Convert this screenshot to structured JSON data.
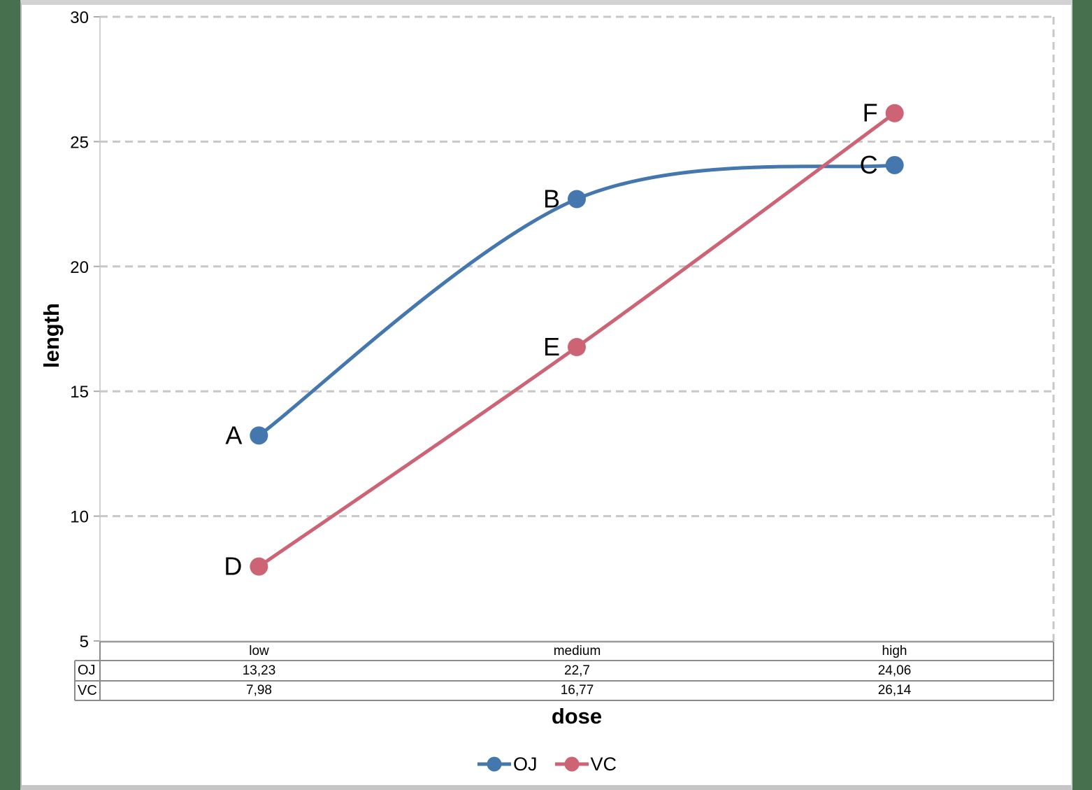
{
  "chart_data": {
    "type": "line",
    "categories": [
      "low",
      "medium",
      "high"
    ],
    "series": [
      {
        "name": "OJ",
        "color": "#4377ad",
        "values": [
          13.23,
          22.7,
          24.06
        ],
        "point_labels": [
          "A",
          "B",
          "C"
        ],
        "smooth": true
      },
      {
        "name": "VC",
        "color": "#cc6476",
        "values": [
          7.98,
          16.77,
          26.14
        ],
        "point_labels": [
          "D",
          "E",
          "F"
        ],
        "smooth": false
      }
    ],
    "xlabel": "dose",
    "ylabel": "length",
    "ylim": [
      5,
      30
    ],
    "yticks": [
      30,
      25,
      20,
      15,
      10,
      5
    ],
    "grid": "horizontal-dashed",
    "legend_position": "bottom",
    "decimal_separator": ","
  },
  "axis": {
    "ylabel": "length",
    "xlabel": "dose"
  },
  "table": {
    "column_headers": [
      "low",
      "medium",
      "high"
    ],
    "rows": [
      {
        "label": "OJ",
        "values": [
          "13,23",
          "22,7",
          "24,06"
        ]
      },
      {
        "label": "VC",
        "values": [
          "7,98",
          "16,77",
          "26,14"
        ]
      }
    ]
  },
  "legend": {
    "items": [
      {
        "label": "OJ",
        "color": "#4377ad"
      },
      {
        "label": "VC",
        "color": "#cc6476"
      }
    ]
  },
  "colors": {
    "background_strips": "#46704e",
    "gridline": "#c8c8c8",
    "table_border": "#8a8a8a"
  }
}
